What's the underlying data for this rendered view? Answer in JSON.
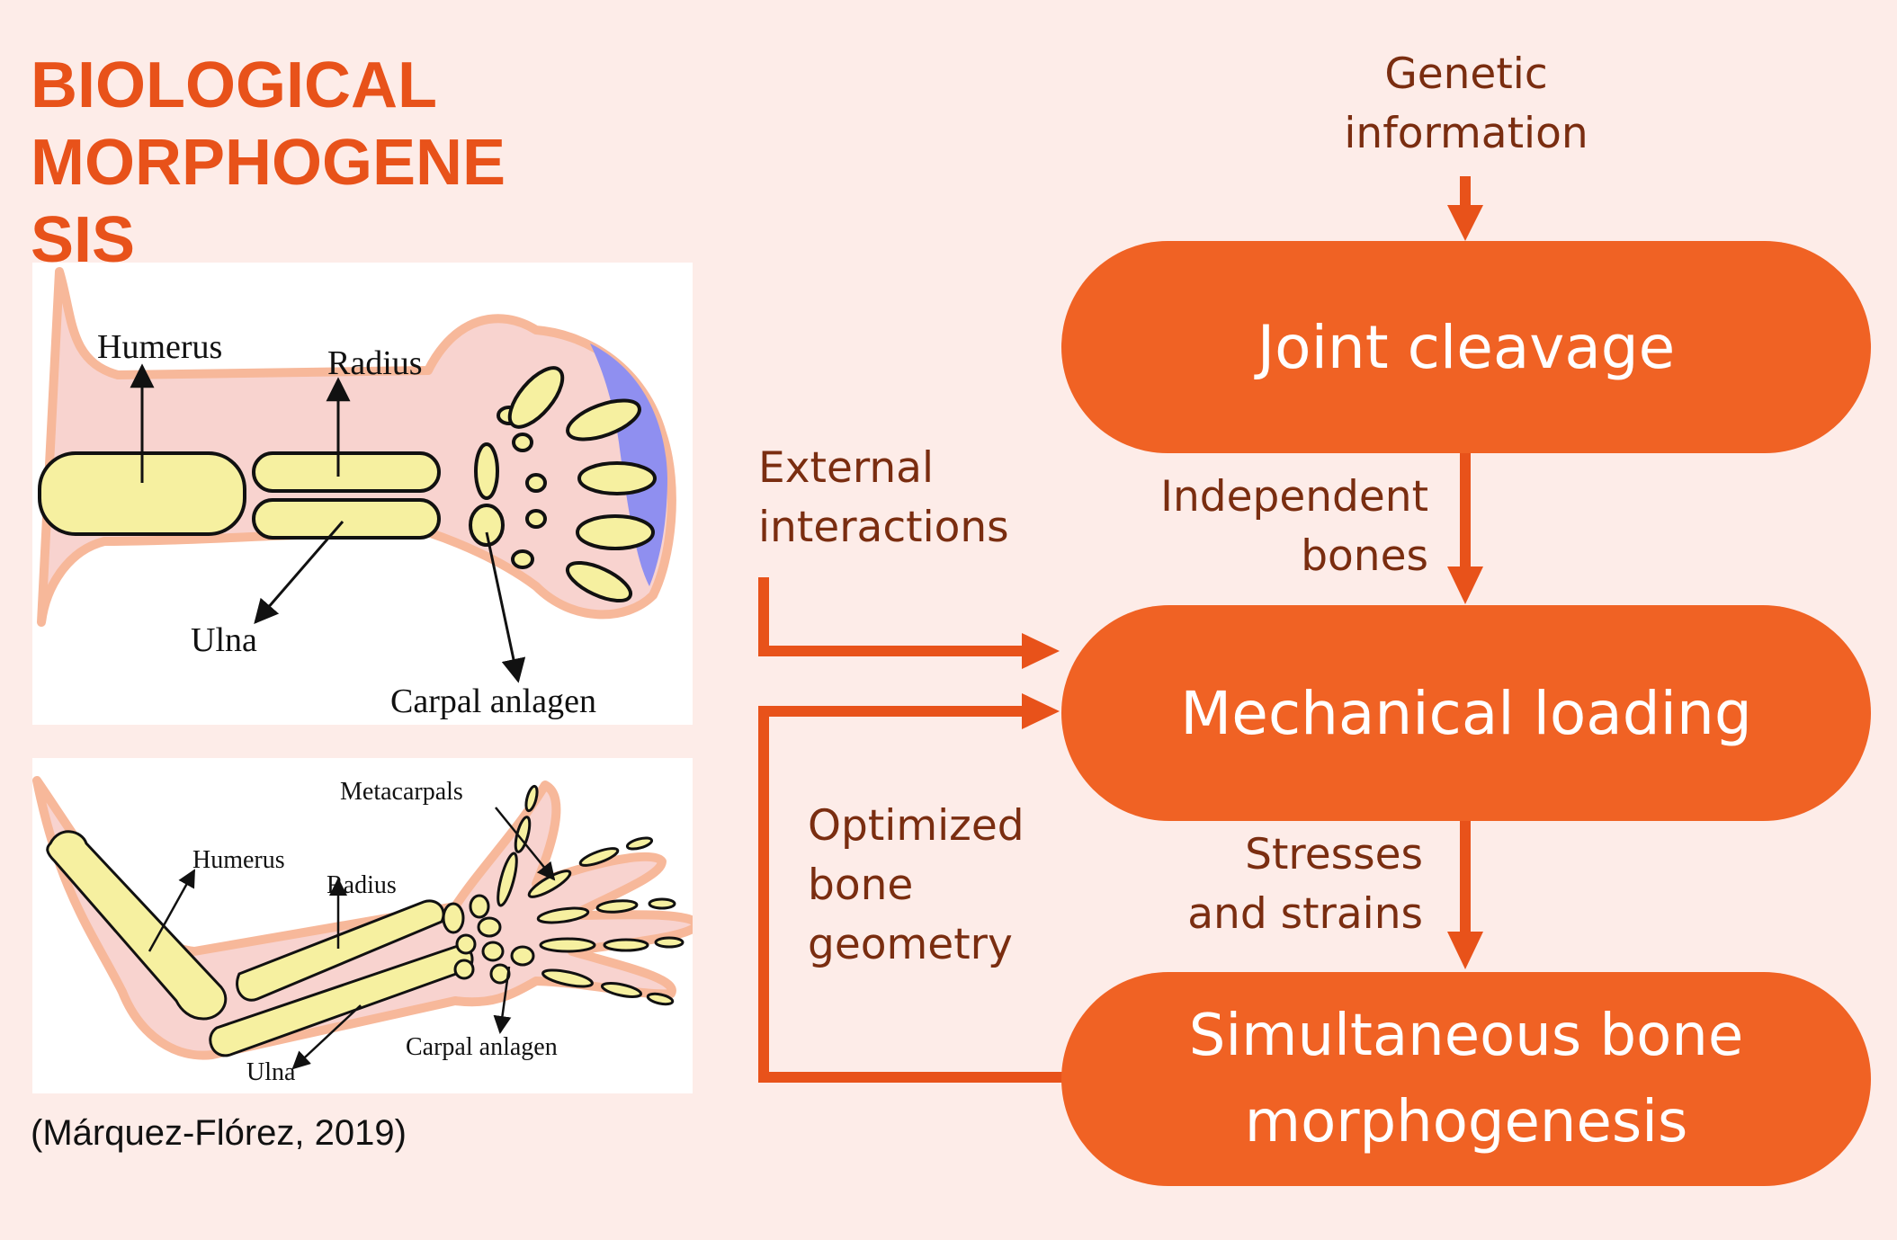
{
  "title": {
    "line1": "BIOLOGICAL",
    "line2": "MORPHOGENE",
    "line3": "SIS"
  },
  "top_diagram": {
    "labels": {
      "humerus": "Humerus",
      "radius": "Radius",
      "ulna": "Ulna",
      "carpal": "Carpal anlagen"
    }
  },
  "bottom_diagram": {
    "labels": {
      "metacarpals": "Metacarpals",
      "humerus": "Humerus",
      "radius": "Radius",
      "ulna": "Ulna",
      "carpal": "Carpal anlagen"
    }
  },
  "citation": "(Márquez-Flórez, 2019)",
  "flow": {
    "genetic_line1": "Genetic",
    "genetic_line2": "information",
    "node1": "Joint cleavage",
    "independent_line1": "Independent",
    "independent_line2": "bones",
    "external_line1": "External",
    "external_line2": "interactions",
    "node2": "Mechanical loading",
    "optimized_line1": "Optimized",
    "optimized_line2": "bone",
    "optimized_line3": "geometry",
    "stresses_line1": "Stresses",
    "stresses_line2": "and strains",
    "node3_line1": "Simultaneous bone",
    "node3_line2": "morphogenesis"
  },
  "colors": {
    "accent": "#e8521a",
    "node": "#f06224",
    "label_text": "#7a2d10",
    "background": "#fdece8",
    "bone": "#f6f0a0",
    "tissue": "#f8d3cf",
    "ridge": "#8f8ff0"
  }
}
